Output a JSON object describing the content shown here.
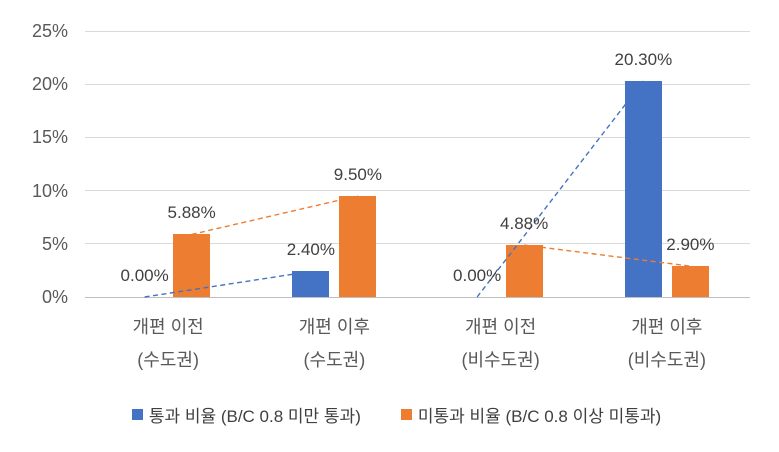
{
  "chart_data": {
    "type": "bar",
    "title": "",
    "categories": [
      {
        "line1": "개편 이전",
        "line2": "(수도권)"
      },
      {
        "line1": "개편 이후",
        "line2": "(수도권)"
      },
      {
        "line1": "개편 이전",
        "line2": "(비수도권)"
      },
      {
        "line1": "개편 이후",
        "line2": "(비수도권)"
      }
    ],
    "series": [
      {
        "name": "통과 비율 (B/C 0.8 미만 통과)",
        "color": "#4472C4",
        "values": [
          0.0,
          2.4,
          0.0,
          20.3
        ],
        "labels": [
          "0.00%",
          "2.40%",
          "0.00%",
          "20.30%"
        ]
      },
      {
        "name": "미통과 비율 (B/C 0.8 이상 미통과)",
        "color": "#ED7D31",
        "values": [
          5.88,
          9.5,
          4.88,
          2.9
        ],
        "labels": [
          "5.88%",
          "9.50%",
          "4.88%",
          "2.90%"
        ]
      }
    ],
    "y_axis": {
      "min": 0,
      "max": 25,
      "step": 5,
      "tick_labels": [
        "0%",
        "5%",
        "10%",
        "15%",
        "20%",
        "25%"
      ]
    },
    "trend_lines": [
      {
        "series": 0,
        "from": 0,
        "to": 1,
        "style": "dashed"
      },
      {
        "series": 0,
        "from": 2,
        "to": 3,
        "style": "dashed"
      },
      {
        "series": 1,
        "from": 0,
        "to": 1,
        "style": "dashed"
      },
      {
        "series": 1,
        "from": 2,
        "to": 3,
        "style": "dashed"
      }
    ],
    "grid": true,
    "legend_position": "bottom"
  },
  "colors": {
    "grid": "#D9D9D9",
    "baseline": "#BFBFBF",
    "tick_text": "#595959",
    "category_text": "#595959",
    "data_label_text": "#404040",
    "legend_text": "#404040",
    "background": "#FFFFFF"
  }
}
